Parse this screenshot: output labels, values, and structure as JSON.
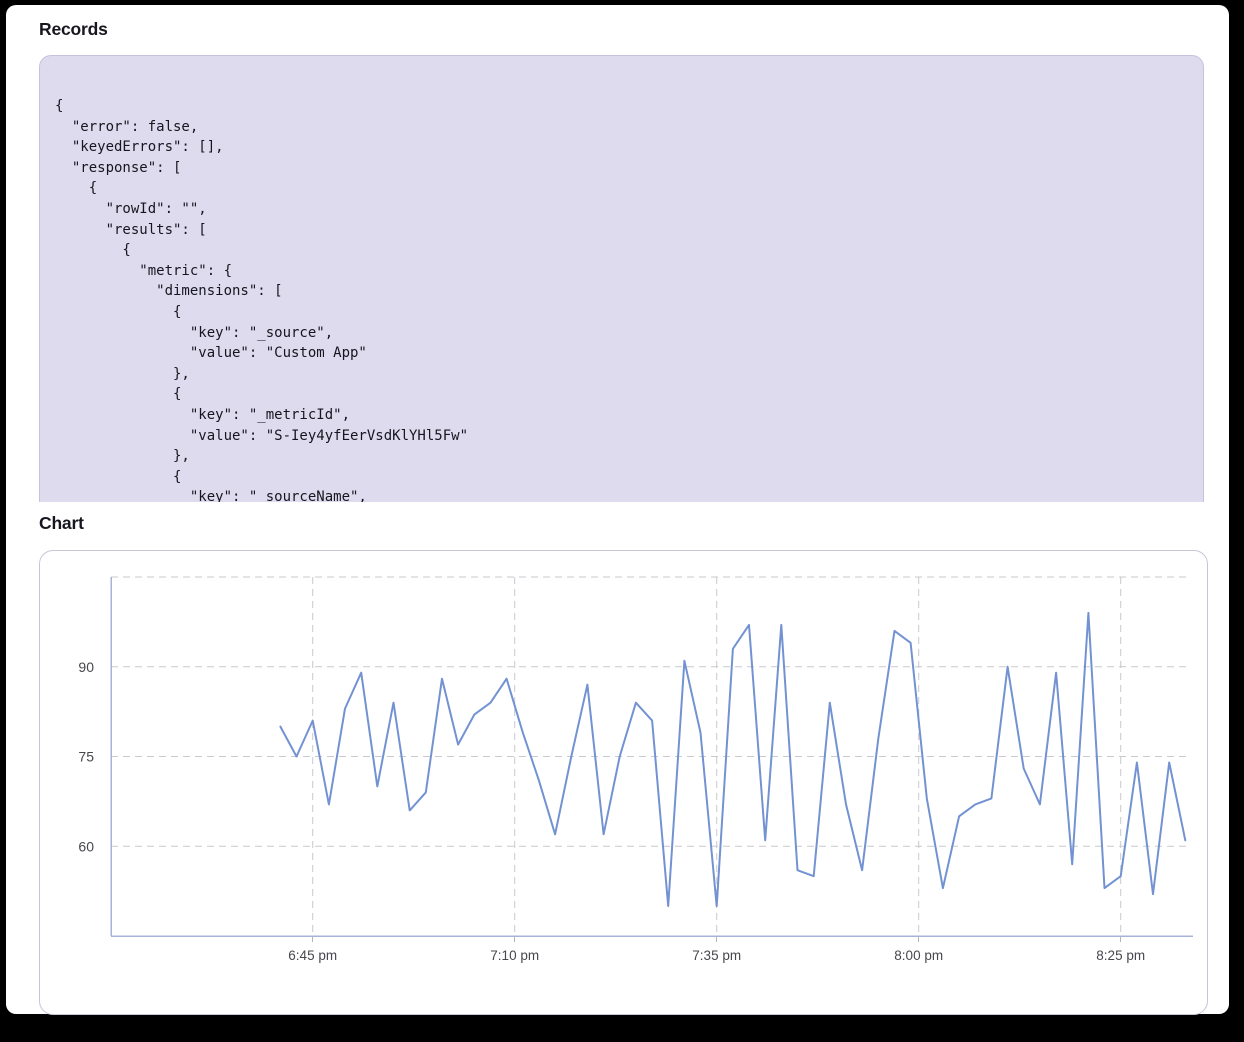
{
  "page": {
    "background_color": "#ffffff",
    "frame_color": "#000000"
  },
  "records": {
    "heading": "Records",
    "code_lines": [
      "{",
      "  \"error\": false,",
      "  \"keyedErrors\": [],",
      "  \"response\": [",
      "    {",
      "      \"rowId\": \"\",",
      "      \"results\": [",
      "        {",
      "          \"metric\": {",
      "            \"dimensions\": [",
      "              {",
      "                \"key\": \"_source\",",
      "                \"value\": \"Custom App\"",
      "              },",
      "              {",
      "                \"key\": \"_metricId\",",
      "                \"value\": \"S-Iey4yfEerVsdKlYHl5Fw\"",
      "              },",
      "              {",
      "                \"key\": \"_sourceName\","
    ]
  },
  "chart": {
    "heading": "Chart"
  },
  "chart_data": {
    "type": "line",
    "title": "",
    "xlabel": "",
    "ylabel": "",
    "series_color": "#7392d2",
    "axis_color": "#a7b3d9",
    "grid_color": "#c9c9cf",
    "tick_label_color": "#47474e",
    "grid": "dashed",
    "legend": "none",
    "x_axis": {
      "domain_start_label": "6:20 pm",
      "domain_minutes": 133.2,
      "ticks": [
        "6:45 pm",
        "7:10 pm",
        "7:35 pm",
        "8:00 pm",
        "8:25 pm"
      ],
      "tick_offsets_min": [
        25,
        50,
        75,
        100,
        125
      ]
    },
    "y_axis": {
      "range": [
        45,
        105
      ],
      "ticks": [
        60,
        75,
        90
      ]
    },
    "series": [
      {
        "name": "metric-values",
        "x_start_label": "6:41 pm",
        "start_offset_min": 21,
        "interval_min": 2,
        "values": [
          80,
          75,
          81,
          67,
          83,
          89,
          70,
          84,
          66,
          69,
          88,
          77,
          82,
          84,
          88,
          79,
          71,
          62,
          75,
          87,
          62,
          75,
          84,
          81,
          50,
          91,
          79,
          50,
          93,
          97,
          61,
          97,
          56,
          55,
          84,
          67,
          56,
          78,
          96,
          94,
          68,
          53,
          65,
          67,
          68,
          90,
          73,
          67,
          89,
          57,
          99,
          53,
          55,
          74,
          52,
          74,
          61
        ]
      }
    ]
  }
}
